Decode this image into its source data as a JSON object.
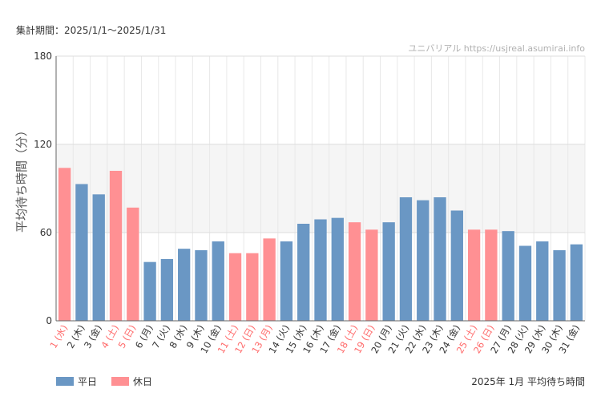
{
  "header": {
    "period": "集計期間：2025/1/1〜2025/1/31",
    "credit": "ユニバリアル  https://usjreal.asumirai.info"
  },
  "footer": {
    "title": "2025年 1月 平均待ち時間"
  },
  "colors": {
    "weekday": "#6a97c4",
    "holiday": "#ff9093",
    "holiday_text": "#ff6b6b",
    "band": "#f5f5f5",
    "grid": "#e8e8e8"
  },
  "chart_data": {
    "type": "bar",
    "title": "2025年 1月 平均待ち時間",
    "ylabel": "平均待ち時間（分）",
    "xlabel": "",
    "ylim": [
      0,
      180
    ],
    "yticks": [
      0,
      60,
      120,
      180
    ],
    "highlight_band": [
      60,
      120
    ],
    "legend": [
      {
        "key": "weekday",
        "label": "平日"
      },
      {
        "key": "holiday",
        "label": "休日"
      }
    ],
    "categories": [
      "1 (水)",
      "2 (木)",
      "3 (金)",
      "4 (土)",
      "5 (日)",
      "6 (月)",
      "7 (火)",
      "8 (水)",
      "9 (木)",
      "10 (金)",
      "11 (土)",
      "12 (日)",
      "13 (月)",
      "14 (火)",
      "15 (水)",
      "16 (木)",
      "17 (金)",
      "18 (土)",
      "19 (日)",
      "20 (月)",
      "21 (火)",
      "22 (水)",
      "23 (木)",
      "24 (金)",
      "25 (土)",
      "26 (日)",
      "27 (月)",
      "28 (火)",
      "29 (水)",
      "30 (木)",
      "31 (金)"
    ],
    "values": [
      104,
      93,
      86,
      102,
      77,
      40,
      42,
      49,
      48,
      54,
      46,
      46,
      56,
      54,
      66,
      69,
      70,
      67,
      62,
      67,
      84,
      82,
      84,
      75,
      62,
      62,
      61,
      51,
      54,
      48,
      52
    ],
    "holiday": [
      true,
      false,
      false,
      true,
      true,
      false,
      false,
      false,
      false,
      false,
      true,
      true,
      true,
      false,
      false,
      false,
      false,
      true,
      true,
      false,
      false,
      false,
      false,
      false,
      true,
      true,
      false,
      false,
      false,
      false,
      false
    ]
  }
}
